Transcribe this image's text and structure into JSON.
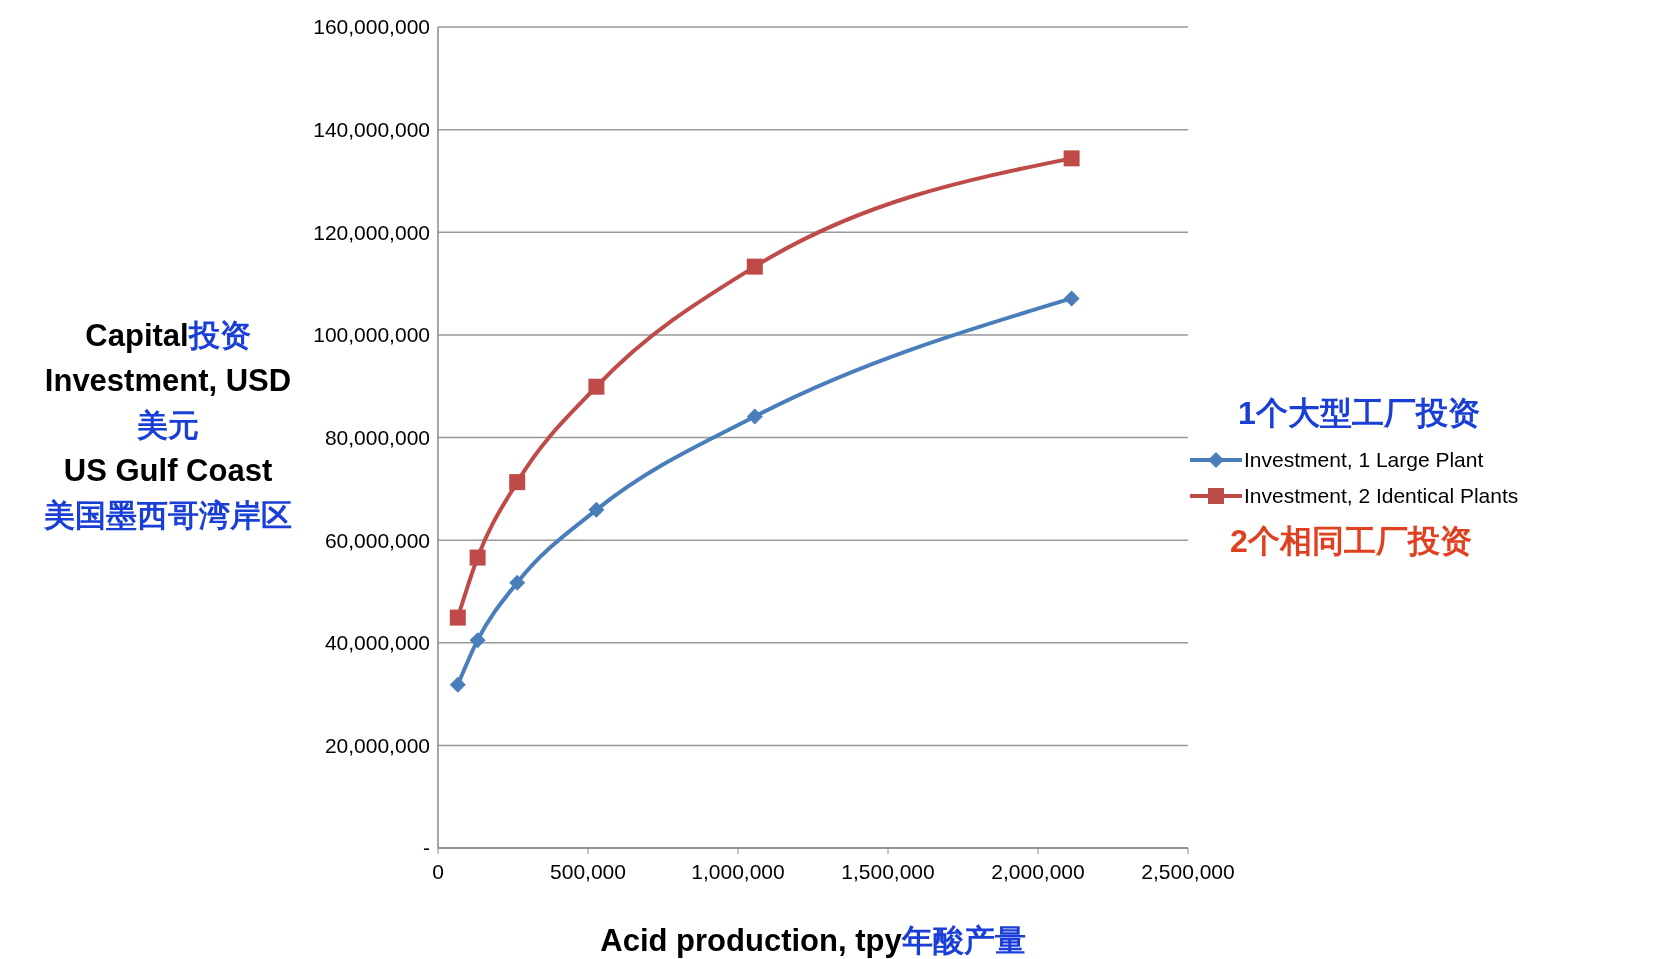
{
  "chart_data": {
    "type": "line",
    "xlabel": "Acid production, tpy年酸产量",
    "ylabel": "Capital投资\nInvestment, USD\n美元\nUS Gulf Coast\n美国墨西哥湾岸区",
    "x": [
      66000,
      132000,
      264000,
      528000,
      1056000,
      2112000
    ],
    "series": [
      {
        "name": "Investment, 1 Large Plant",
        "color": "#4a7ebb",
        "marker": "diamond",
        "values": [
          31800000,
          40500000,
          51700000,
          65900000,
          84100000,
          107100000
        ]
      },
      {
        "name": "Investment, 2 Identical Plants",
        "color": "#be4b48",
        "marker": "square",
        "values": [
          44900000,
          56600000,
          71300000,
          89900000,
          113300000,
          134400000
        ]
      }
    ],
    "xlim": [
      0,
      2500000
    ],
    "xticks": [
      0,
      {
        "value": 500000,
        "label": "500,000"
      },
      {
        "value": 1000000,
        "label": "1,000,000"
      },
      {
        "value": 1500000,
        "label": "1,500,000"
      },
      {
        "value": 2000000,
        "label": "2,000,000"
      },
      {
        "value": 2500000,
        "label": "2,500,000"
      }
    ],
    "ylim": [
      0,
      160000000
    ],
    "yticks": [
      {
        "value": 0,
        "label": "-"
      },
      {
        "value": 20000000,
        "label": "20,000,000"
      },
      {
        "value": 40000000,
        "label": "40,000,000"
      },
      {
        "value": 60000000,
        "label": "60,000,000"
      },
      {
        "value": 80000000,
        "label": "80,000,000"
      },
      {
        "value": 100000000,
        "label": "100,000,000"
      },
      {
        "value": 120000000,
        "label": "120,000,000"
      },
      {
        "value": 140000000,
        "label": "140,000,000"
      },
      {
        "value": 160000000,
        "label": "160,000,000"
      }
    ],
    "grid": "y",
    "legend": "right",
    "line_style": "solid",
    "annotations": [
      "1个大型工厂投资",
      "2个相同工厂投资"
    ]
  }
}
